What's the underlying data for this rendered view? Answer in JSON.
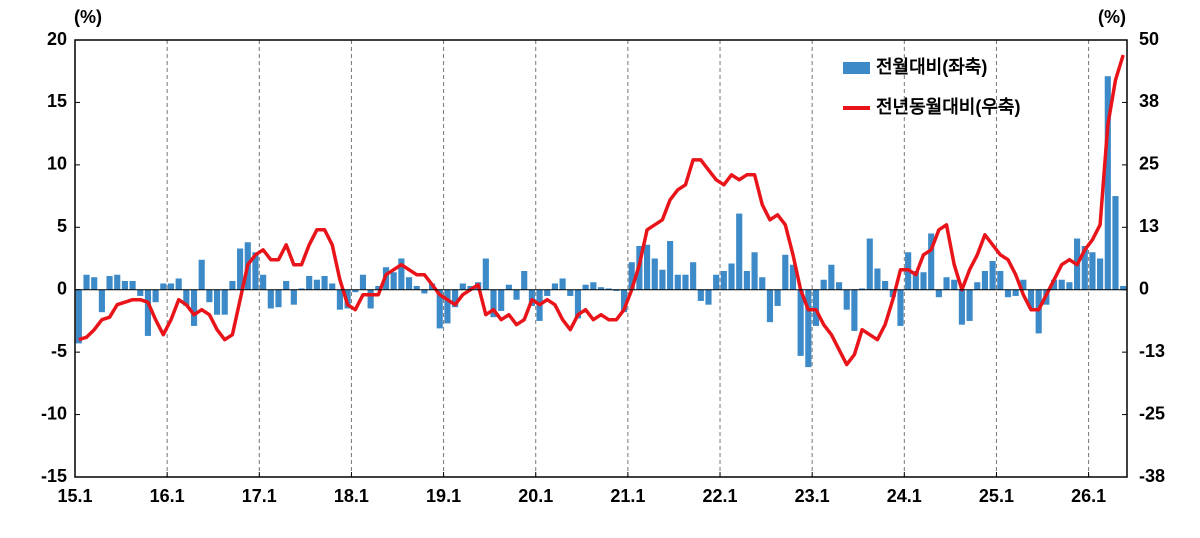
{
  "chart_data": {
    "type": "combo",
    "y_label": "(%)",
    "y2_label": "(%)",
    "categories": [
      "15.1",
      null,
      null,
      null,
      null,
      null,
      null,
      null,
      null,
      null,
      null,
      null,
      "16.1",
      null,
      null,
      null,
      null,
      null,
      null,
      null,
      null,
      null,
      null,
      null,
      "17.1",
      null,
      null,
      null,
      null,
      null,
      null,
      null,
      null,
      null,
      null,
      null,
      "18.1",
      null,
      null,
      null,
      null,
      null,
      null,
      null,
      null,
      null,
      null,
      null,
      "19.1",
      null,
      null,
      null,
      null,
      null,
      null,
      null,
      null,
      null,
      null,
      null,
      "20.1",
      null,
      null,
      null,
      null,
      null,
      null,
      null,
      null,
      null,
      null,
      null,
      "21.1",
      null,
      null,
      null,
      null,
      null,
      null,
      null,
      null,
      null,
      null,
      null,
      "22.1",
      null,
      null,
      null,
      null,
      null,
      null,
      null,
      null,
      null,
      null,
      null,
      "23.1",
      null,
      null,
      null,
      null,
      null,
      null,
      null,
      null,
      null,
      null,
      null,
      "24.1",
      null,
      null,
      null,
      null,
      null,
      null,
      null,
      null,
      null,
      null,
      null,
      "25.1",
      null,
      null,
      null,
      null,
      null,
      null,
      null,
      null,
      null,
      null,
      null,
      "26.1",
      null,
      null,
      null,
      null
    ],
    "series": [
      {
        "name": "전월대비(좌축)",
        "type": "bar",
        "color": "#3d8ac8",
        "values": [
          -4.3,
          1.2,
          1.0,
          -1.8,
          1.1,
          1.2,
          0.7,
          0.7,
          -0.5,
          -3.7,
          -1.0,
          0.5,
          0.5,
          0.9,
          -1.3,
          -2.9,
          2.4,
          -1.0,
          -2.0,
          -2.0,
          0.7,
          3.3,
          3.8,
          3.0,
          1.2,
          -1.5,
          -1.4,
          0.7,
          -1.2,
          0.1,
          1.1,
          0.8,
          1.1,
          0.5,
          -1.6,
          -1.5,
          -0.2,
          1.2,
          -1.5,
          0.3,
          1.8,
          1.4,
          2.5,
          1.0,
          0.3,
          -0.3,
          0.5,
          -3.1,
          -2.7,
          -1.4,
          0.5,
          0.3,
          0.6,
          2.5,
          -2.2,
          -1.7,
          0.4,
          -0.8,
          1.5,
          -1.3,
          -2.5,
          -0.5,
          0.5,
          0.9,
          -0.5,
          -2.3,
          0.4,
          0.6,
          0.2,
          0.1,
          -0.1,
          -1.8,
          2.2,
          3.5,
          3.6,
          2.5,
          1.6,
          3.9,
          1.2,
          1.2,
          2.2,
          -0.9,
          -1.2,
          1.2,
          1.5,
          2.1,
          6.1,
          1.5,
          3.0,
          1.0,
          -2.6,
          -1.3,
          2.8,
          2.0,
          -5.3,
          -6.2,
          -2.9,
          0.8,
          2.0,
          0.6,
          -1.6,
          -3.3,
          0.1,
          4.1,
          1.7,
          0.7,
          -0.6,
          -2.9,
          3.0,
          1.5,
          1.4,
          4.5,
          -0.6,
          1.0,
          0.8,
          -2.8,
          -2.5,
          0.6,
          1.5,
          2.3,
          1.5,
          -0.6,
          -0.5,
          0.8,
          -1.5,
          -3.5,
          -1.2,
          0.8,
          0.8,
          0.6,
          4.1,
          3.5,
          3.0,
          2.5,
          17.1,
          7.5,
          0.3
        ]
      },
      {
        "name": "전년동월대비(우축)",
        "type": "line",
        "axis": "y2",
        "color": "#e8141a",
        "values": [
          -10,
          -9.5,
          -8,
          -6,
          -5.5,
          -3,
          -2.5,
          -2,
          -2,
          -2.5,
          -6,
          -9,
          -6,
          -2,
          -3,
          -5,
          -4,
          -5,
          -8,
          -10,
          -9,
          -2,
          5,
          7,
          8,
          6,
          6,
          9,
          5,
          5,
          9,
          12,
          12,
          9,
          2,
          -3,
          -4,
          -1,
          -1,
          -1,
          3,
          4,
          5,
          4,
          3,
          3,
          1,
          -1,
          -2,
          -3,
          -1,
          0,
          1,
          -5,
          -4,
          -6,
          -5,
          -7,
          -6,
          -2,
          -3,
          -2,
          -3,
          -6,
          -8,
          -5,
          -4,
          -6,
          -5,
          -6,
          -6,
          -4,
          0,
          5,
          12,
          13,
          14,
          18,
          20,
          21,
          26,
          26,
          24,
          22,
          21,
          23,
          22,
          23,
          23,
          17,
          14,
          15,
          13,
          7,
          0,
          -4,
          -4,
          -7,
          -9,
          -12,
          -15,
          -13,
          -8,
          -9,
          -10,
          -7,
          -2,
          4,
          4,
          3,
          7,
          8,
          12,
          13,
          5,
          0,
          4,
          7,
          11,
          9,
          7,
          6,
          3,
          -1,
          -4,
          -4,
          -1,
          2,
          5,
          6,
          5,
          8,
          10,
          13,
          33,
          42,
          47
        ]
      }
    ],
    "ylim": [
      -15,
      20
    ],
    "yticks": [
      -15,
      -10,
      -5,
      0,
      5,
      10,
      15,
      20
    ],
    "y2lim": [
      -37.5,
      50
    ],
    "y2ticks": [
      {
        "value": -37.5,
        "label": "-38"
      },
      -25,
      {
        "value": -12.5,
        "label": "-13"
      },
      0,
      {
        "value": 12.5,
        "label": "13"
      },
      25,
      {
        "value": 37.5,
        "label": "38"
      },
      50
    ],
    "legend": "upper right"
  }
}
